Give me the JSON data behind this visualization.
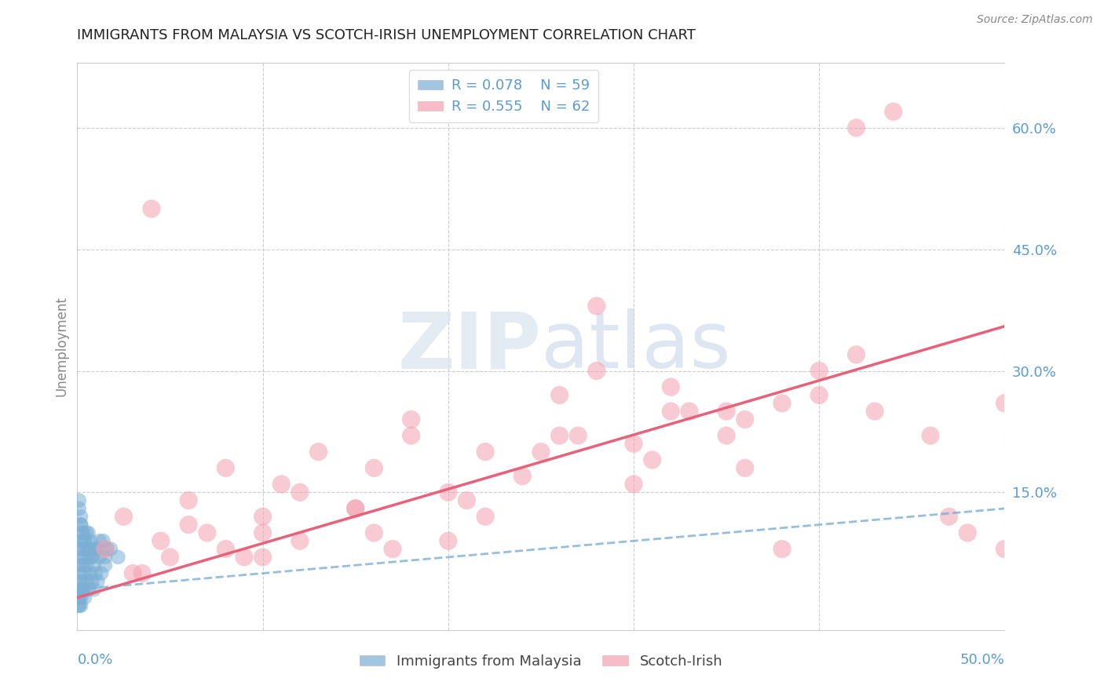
{
  "title": "IMMIGRANTS FROM MALAYSIA VS SCOTCH-IRISH UNEMPLOYMENT CORRELATION CHART",
  "source": "Source: ZipAtlas.com",
  "ylabel": "Unemployment",
  "y_ticks": [
    0.15,
    0.3,
    0.45,
    0.6
  ],
  "y_tick_labels": [
    "15.0%",
    "30.0%",
    "45.0%",
    "60.0%"
  ],
  "xlim": [
    0.0,
    0.5
  ],
  "ylim": [
    -0.02,
    0.68
  ],
  "legend_r1": "R = 0.078",
  "legend_n1": "N = 59",
  "legend_r2": "R = 0.555",
  "legend_n2": "N = 62",
  "color_blue": "#7BAFD4",
  "color_pink": "#F4A0B0",
  "color_line_blue": "#7BAFD4",
  "color_line_pink": "#E8607A",
  "color_axis_label": "#5B9BD5",
  "watermark_color": "#D8E4EF",
  "background_color": "#FFFFFF",
  "grid_color": "#CCCCCC",
  "blue_trend_x0": 0.0,
  "blue_trend_y0": 0.03,
  "blue_trend_x1": 0.5,
  "blue_trend_y1": 0.13,
  "pink_trend_x0": 0.0,
  "pink_trend_y0": 0.02,
  "pink_trend_x1": 0.5,
  "pink_trend_y1": 0.355,
  "blue_x": [
    0.001,
    0.001,
    0.001,
    0.001,
    0.001,
    0.002,
    0.002,
    0.002,
    0.002,
    0.002,
    0.002,
    0.003,
    0.003,
    0.003,
    0.003,
    0.003,
    0.004,
    0.004,
    0.004,
    0.004,
    0.005,
    0.005,
    0.005,
    0.006,
    0.006,
    0.006,
    0.007,
    0.007,
    0.008,
    0.008,
    0.009,
    0.009,
    0.01,
    0.01,
    0.011,
    0.012,
    0.013,
    0.014,
    0.015,
    0.016,
    0.001,
    0.001,
    0.002,
    0.002,
    0.003,
    0.004,
    0.005,
    0.006,
    0.007,
    0.008,
    0.01,
    0.012,
    0.015,
    0.018,
    0.022,
    0.001,
    0.001,
    0.002,
    0.003
  ],
  "blue_y": [
    0.02,
    0.04,
    0.06,
    0.08,
    0.01,
    0.03,
    0.05,
    0.07,
    0.09,
    0.02,
    0.11,
    0.04,
    0.06,
    0.08,
    0.03,
    0.1,
    0.05,
    0.07,
    0.02,
    0.09,
    0.04,
    0.06,
    0.08,
    0.03,
    0.07,
    0.1,
    0.05,
    0.08,
    0.04,
    0.07,
    0.03,
    0.06,
    0.05,
    0.08,
    0.04,
    0.07,
    0.05,
    0.09,
    0.06,
    0.08,
    0.13,
    0.14,
    0.12,
    0.11,
    0.1,
    0.09,
    0.1,
    0.08,
    0.09,
    0.07,
    0.08,
    0.09,
    0.07,
    0.08,
    0.07,
    0.01,
    0.02,
    0.01,
    0.03
  ],
  "pink_x": [
    0.015,
    0.025,
    0.035,
    0.045,
    0.06,
    0.07,
    0.08,
    0.09,
    0.1,
    0.11,
    0.12,
    0.13,
    0.15,
    0.16,
    0.17,
    0.18,
    0.2,
    0.22,
    0.24,
    0.26,
    0.28,
    0.3,
    0.32,
    0.35,
    0.36,
    0.38,
    0.4,
    0.42,
    0.44,
    0.46,
    0.48,
    0.5,
    0.05,
    0.1,
    0.15,
    0.2,
    0.25,
    0.3,
    0.35,
    0.4,
    0.08,
    0.12,
    0.18,
    0.22,
    0.27,
    0.32,
    0.38,
    0.43,
    0.03,
    0.06,
    0.1,
    0.16,
    0.21,
    0.26,
    0.31,
    0.36,
    0.42,
    0.47,
    0.28,
    0.33,
    0.04,
    0.5
  ],
  "pink_y": [
    0.08,
    0.12,
    0.05,
    0.09,
    0.14,
    0.1,
    0.18,
    0.07,
    0.12,
    0.16,
    0.09,
    0.2,
    0.13,
    0.18,
    0.08,
    0.22,
    0.15,
    0.2,
    0.17,
    0.22,
    0.38,
    0.21,
    0.25,
    0.22,
    0.18,
    0.26,
    0.27,
    0.6,
    0.62,
    0.22,
    0.1,
    0.08,
    0.07,
    0.1,
    0.13,
    0.09,
    0.2,
    0.16,
    0.25,
    0.3,
    0.08,
    0.15,
    0.24,
    0.12,
    0.22,
    0.28,
    0.08,
    0.25,
    0.05,
    0.11,
    0.07,
    0.1,
    0.14,
    0.27,
    0.19,
    0.24,
    0.32,
    0.12,
    0.3,
    0.25,
    0.5,
    0.26
  ]
}
